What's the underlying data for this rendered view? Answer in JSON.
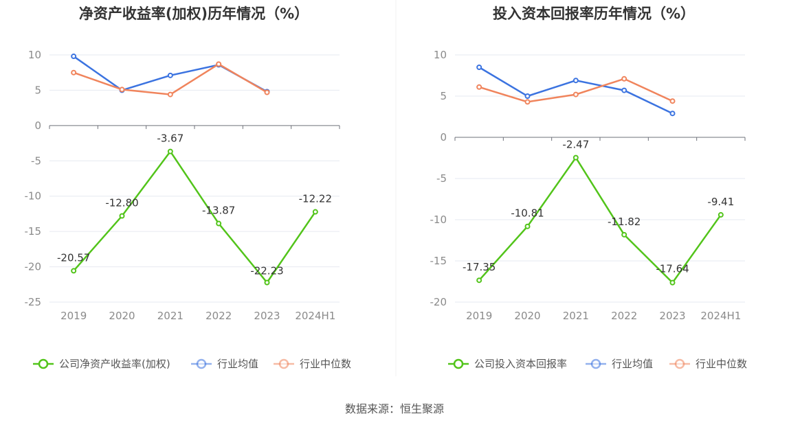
{
  "source_label": "数据来源：恒生聚源",
  "colors": {
    "company": "#52c41a",
    "average": "#3b73e0",
    "median": "#f0845c",
    "grid": "#e6e9f0",
    "axis": "#6e7079"
  },
  "chart_data": [
    {
      "type": "line",
      "title": "净资产收益率(加权)历年情况（%）",
      "categories": [
        "2019",
        "2020",
        "2021",
        "2022",
        "2023",
        "2024H1"
      ],
      "ylim": [
        -25,
        10
      ],
      "yticks": [
        10,
        5,
        0,
        -5,
        -10,
        -15,
        -20,
        -25
      ],
      "yticks_labels": [
        "10",
        "5",
        "0",
        "-5",
        "-10",
        "-15",
        "-20",
        "-25"
      ],
      "grid": true,
      "legend": "bottom",
      "series": [
        {
          "name": "公司净资产收益率(加权)",
          "key": "company",
          "values": [
            -20.57,
            -12.8,
            -3.67,
            -13.87,
            -22.23,
            -12.22
          ],
          "labels": [
            "-20.57",
            "-12.80",
            "-3.67",
            "-13.87",
            "-22.23",
            "-12.22"
          ]
        },
        {
          "name": "行业均值",
          "key": "average",
          "values": [
            9.8,
            5.0,
            7.1,
            8.6,
            4.8,
            null
          ]
        },
        {
          "name": "行业中位数",
          "key": "median",
          "values": [
            7.5,
            5.1,
            4.4,
            8.7,
            4.7,
            null
          ]
        }
      ]
    },
    {
      "type": "line",
      "title": "投入资本回报率历年情况（%）",
      "categories": [
        "2019",
        "2020",
        "2021",
        "2022",
        "2023",
        "2024H1"
      ],
      "ylim": [
        -20,
        10
      ],
      "yticks": [
        10,
        5,
        0,
        -5,
        -10,
        -15,
        -20
      ],
      "yticks_labels": [
        "10",
        "5",
        "0",
        "-5",
        "-10",
        "-15",
        "-20"
      ],
      "grid": true,
      "legend": "bottom",
      "series": [
        {
          "name": "公司投入资本回报率",
          "key": "company",
          "values": [
            -17.35,
            -10.81,
            -2.47,
            -11.82,
            -17.64,
            -9.41
          ],
          "labels": [
            "-17.35",
            "-10.81",
            "-2.47",
            "-11.82",
            "-17.64",
            "-9.41"
          ]
        },
        {
          "name": "行业均值",
          "key": "average",
          "values": [
            8.5,
            5.0,
            6.9,
            5.7,
            2.9,
            null
          ]
        },
        {
          "name": "行业中位数",
          "key": "median",
          "values": [
            6.1,
            4.3,
            5.2,
            7.1,
            4.4,
            null
          ]
        }
      ]
    }
  ]
}
